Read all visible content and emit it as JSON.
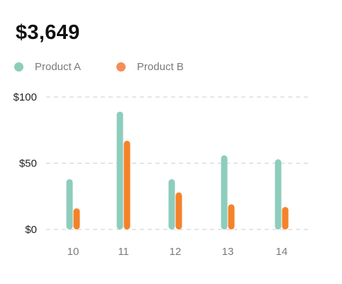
{
  "summary": {
    "total": "$3,649"
  },
  "colors": {
    "product_a": "#8dcdbc",
    "product_b": "#f5822a",
    "grid": "#d6d6d6",
    "axis_text": "#7a7a7a",
    "y_text": "#222222"
  },
  "chart_data": {
    "type": "bar",
    "title": "",
    "xlabel": "",
    "ylabel": "",
    "categories": [
      "10",
      "11",
      "12",
      "13",
      "14"
    ],
    "series": [
      {
        "name": "Product A",
        "values": [
          38,
          89,
          38,
          56,
          53
        ]
      },
      {
        "name": "Product B",
        "values": [
          16,
          67,
          28,
          19,
          17
        ]
      }
    ],
    "ylim": [
      0,
      100
    ],
    "y_ticks": [
      {
        "value": 0,
        "label": "$0"
      },
      {
        "value": 50,
        "label": "$50"
      },
      {
        "value": 100,
        "label": "$100"
      }
    ],
    "grid": true,
    "legend_position": "top-left"
  }
}
